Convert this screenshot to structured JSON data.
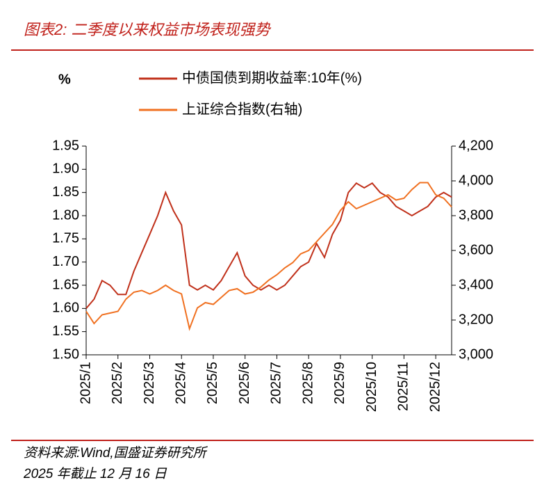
{
  "chart_data": {
    "type": "line",
    "title": "图表2:  二季度以来权益市场表现强势",
    "y_label": "%",
    "source": "资料来源:Wind,国盛证券研究所",
    "note": "2025 年截止 12 月 16 日",
    "x": [
      0,
      0.25,
      0.5,
      0.75,
      1,
      1.25,
      1.5,
      1.75,
      2,
      2.25,
      2.5,
      2.75,
      3,
      3.25,
      3.5,
      3.75,
      4,
      4.25,
      4.5,
      4.75,
      5,
      5.25,
      5.5,
      5.75,
      6,
      6.25,
      6.5,
      6.75,
      7,
      7.25,
      7.5,
      7.75,
      8,
      8.25,
      8.5,
      8.75,
      9,
      9.25,
      9.5,
      9.75,
      10,
      10.25,
      10.5,
      10.75,
      11,
      11.25,
      11.5
    ],
    "xlim": [
      0,
      11.5
    ],
    "xticks": [
      {
        "value": 0,
        "label": "2025/1"
      },
      {
        "value": 1,
        "label": "2025/2"
      },
      {
        "value": 2,
        "label": "2025/3"
      },
      {
        "value": 3,
        "label": "2025/4"
      },
      {
        "value": 4,
        "label": "2025/5"
      },
      {
        "value": 5,
        "label": "2025/6"
      },
      {
        "value": 6,
        "label": "2025/7"
      },
      {
        "value": 7,
        "label": "2025/8"
      },
      {
        "value": 8,
        "label": "2025/9"
      },
      {
        "value": 9,
        "label": "2025/10"
      },
      {
        "value": 10,
        "label": "2025/11"
      },
      {
        "value": 11,
        "label": "2025/12"
      }
    ],
    "ylim": [
      1.5,
      1.95
    ],
    "yticks": [
      {
        "value": 1.5,
        "label": "1.50"
      },
      {
        "value": 1.55,
        "label": "1.55"
      },
      {
        "value": 1.6,
        "label": "1.60"
      },
      {
        "value": 1.65,
        "label": "1.65"
      },
      {
        "value": 1.7,
        "label": "1.70"
      },
      {
        "value": 1.75,
        "label": "1.75"
      },
      {
        "value": 1.8,
        "label": "1.80"
      },
      {
        "value": 1.85,
        "label": "1.85"
      },
      {
        "value": 1.9,
        "label": "1.90"
      },
      {
        "value": 1.95,
        "label": "1.95"
      }
    ],
    "y2lim": [
      3000,
      4200
    ],
    "y2ticks": [
      {
        "value": 3000,
        "label": "3,000"
      },
      {
        "value": 3200,
        "label": "3,200"
      },
      {
        "value": 3400,
        "label": "3,400"
      },
      {
        "value": 3600,
        "label": "3,600"
      },
      {
        "value": 3800,
        "label": "3,800"
      },
      {
        "value": 4000,
        "label": "4,000"
      },
      {
        "value": 4200,
        "label": "4,200"
      }
    ],
    "series": [
      {
        "name": "中债国债到期收益率:10年(%)",
        "color": "#c0301a",
        "values": [
          1.6,
          1.62,
          1.66,
          1.65,
          1.63,
          1.63,
          1.68,
          1.72,
          1.76,
          1.8,
          1.85,
          1.81,
          1.78,
          1.65,
          1.64,
          1.65,
          1.64,
          1.66,
          1.69,
          1.72,
          1.67,
          1.65,
          1.64,
          1.65,
          1.64,
          1.65,
          1.67,
          1.69,
          1.7,
          1.74,
          1.71,
          1.76,
          1.79,
          1.85,
          1.87,
          1.86,
          1.87,
          1.85,
          1.84,
          1.82,
          1.81,
          1.8,
          1.81,
          1.82,
          1.84,
          1.85,
          1.84
        ]
      },
      {
        "name": "上证综合指数(右轴)",
        "color": "#f07020",
        "axis": "y2",
        "values": [
          3250,
          3180,
          3230,
          3240,
          3250,
          3320,
          3360,
          3370,
          3350,
          3370,
          3400,
          3370,
          3350,
          3150,
          3270,
          3300,
          3290,
          3330,
          3370,
          3380,
          3350,
          3360,
          3390,
          3430,
          3460,
          3500,
          3530,
          3580,
          3600,
          3650,
          3700,
          3750,
          3830,
          3880,
          3840,
          3860,
          3880,
          3900,
          3920,
          3890,
          3900,
          3950,
          3990,
          3990,
          3920,
          3900,
          3850
        ]
      }
    ]
  }
}
